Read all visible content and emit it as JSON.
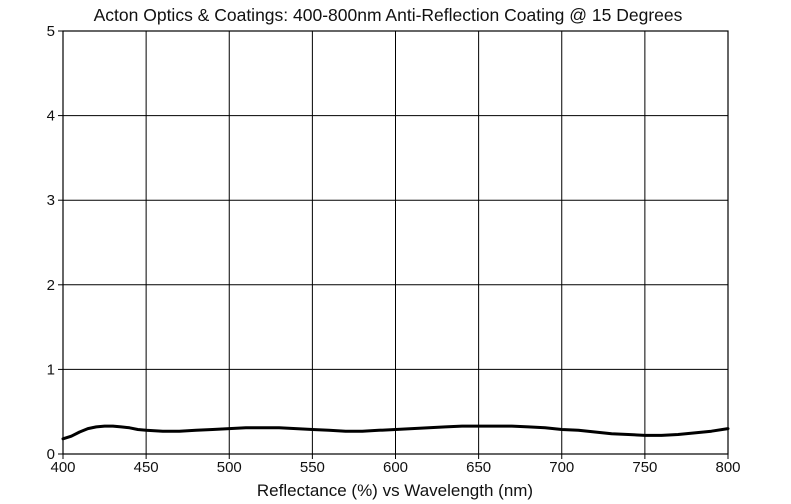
{
  "chart_data": {
    "type": "line",
    "title": "Acton Optics & Coatings: 400-800nm Anti-Reflection Coating @ 15 Degrees",
    "xlabel": "Reflectance (%)  vs  Wavelength (nm)",
    "ylabel": "",
    "xlim": [
      400,
      800
    ],
    "ylim": [
      0,
      5
    ],
    "xticks": [
      400,
      450,
      500,
      550,
      600,
      650,
      700,
      750,
      800
    ],
    "yticks": [
      0,
      1,
      2,
      3,
      4,
      5
    ],
    "grid": true,
    "legend": "none",
    "series": [
      {
        "color": "#000000",
        "x": [
          400,
          405,
          410,
          415,
          420,
          425,
          430,
          435,
          440,
          445,
          450,
          460,
          470,
          480,
          490,
          500,
          510,
          520,
          530,
          540,
          550,
          560,
          570,
          580,
          590,
          600,
          610,
          620,
          630,
          640,
          650,
          660,
          670,
          680,
          690,
          700,
          710,
          720,
          730,
          740,
          750,
          760,
          770,
          780,
          790,
          800
        ],
        "y": [
          0.18,
          0.21,
          0.26,
          0.3,
          0.32,
          0.33,
          0.33,
          0.32,
          0.31,
          0.29,
          0.28,
          0.27,
          0.27,
          0.28,
          0.29,
          0.3,
          0.31,
          0.31,
          0.31,
          0.3,
          0.29,
          0.28,
          0.27,
          0.27,
          0.28,
          0.29,
          0.3,
          0.31,
          0.32,
          0.33,
          0.33,
          0.33,
          0.33,
          0.32,
          0.31,
          0.29,
          0.28,
          0.26,
          0.24,
          0.23,
          0.22,
          0.22,
          0.23,
          0.25,
          0.27,
          0.3
        ]
      }
    ]
  }
}
